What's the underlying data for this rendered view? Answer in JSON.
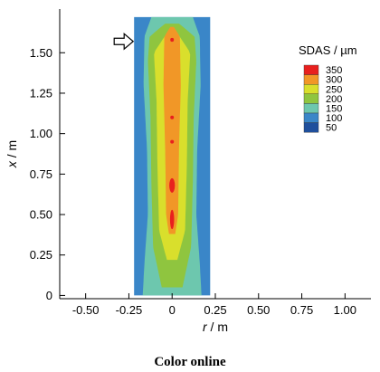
{
  "chart_data": {
    "type": "heatmap",
    "xlabel_var": "r",
    "xlabel_unit": " / m",
    "ylabel_var": "x",
    "ylabel_unit": " / m",
    "xlim": [
      -0.65,
      1.15
    ],
    "ylim": [
      -0.02,
      1.77
    ],
    "x_ticks": [
      -0.5,
      -0.25,
      0,
      0.25,
      0.5,
      0.75,
      1.0
    ],
    "x_tick_labels": [
      "-0.50",
      "-0.25",
      "0",
      "0.25",
      "0.50",
      "0.75",
      "1.00"
    ],
    "y_ticks": [
      0,
      0.25,
      0.5,
      0.75,
      1.0,
      1.25,
      1.5
    ],
    "y_tick_labels": [
      "0",
      "0.25",
      "0.50",
      "0.75",
      "1.00",
      "1.25",
      "1.50"
    ],
    "domain": {
      "r_min": -0.22,
      "r_max": 0.22,
      "x_min": 0,
      "x_max": 1.72
    },
    "legend": {
      "title": "SDAS / µm",
      "levels": [
        {
          "label": "350",
          "color": "#e8201e"
        },
        {
          "label": "300",
          "color": "#f19727"
        },
        {
          "label": "250",
          "color": "#d9df2c"
        },
        {
          "label": "200",
          "color": "#8fc53f"
        },
        {
          "label": "150",
          "color": "#6dc7ae"
        },
        {
          "label": "100",
          "color": "#3a86c8"
        },
        {
          "label": "50",
          "color": "#1f4f9c"
        }
      ]
    },
    "arrow_at_x": 1.57,
    "contours": [
      {
        "level": 100,
        "color": "#3a86c8",
        "half_width": [
          [
            0,
            0.22
          ],
          [
            1.72,
            0.22
          ]
        ]
      },
      {
        "level": 150,
        "color": "#6dc7ae",
        "half_width": [
          [
            0,
            0.17
          ],
          [
            0.2,
            0.16
          ],
          [
            0.5,
            0.14
          ],
          [
            0.9,
            0.145
          ],
          [
            1.3,
            0.165
          ],
          [
            1.6,
            0.16
          ],
          [
            1.72,
            0.12
          ]
        ]
      },
      {
        "level": 200,
        "color": "#8fc53f",
        "half_width": [
          [
            0.05,
            0.06
          ],
          [
            0.3,
            0.11
          ],
          [
            0.7,
            0.12
          ],
          [
            1.1,
            0.125
          ],
          [
            1.45,
            0.14
          ],
          [
            1.6,
            0.13
          ],
          [
            1.68,
            0.04
          ]
        ]
      },
      {
        "level": 250,
        "color": "#d9df2c",
        "half_width": [
          [
            0.22,
            0.03
          ],
          [
            0.4,
            0.075
          ],
          [
            0.8,
            0.085
          ],
          [
            1.2,
            0.09
          ],
          [
            1.5,
            0.105
          ],
          [
            1.63,
            0.025
          ]
        ]
      },
      {
        "level": 300,
        "color": "#f19727",
        "half_width": [
          [
            0.38,
            0.018
          ],
          [
            0.5,
            0.035
          ],
          [
            0.9,
            0.04
          ],
          [
            1.3,
            0.05
          ],
          [
            1.6,
            0.045
          ],
          [
            1.66,
            0.01
          ]
        ]
      }
    ],
    "hot_spots": [
      {
        "r": 0,
        "x": 0.47,
        "w": 0.012,
        "h": 0.06
      },
      {
        "r": 0,
        "x": 0.68,
        "w": 0.016,
        "h": 0.045
      },
      {
        "r": 0,
        "x": 0.95,
        "w": 0.006,
        "h": 0.01
      },
      {
        "r": 0,
        "x": 1.1,
        "w": 0.006,
        "h": 0.01
      },
      {
        "r": 0,
        "x": 1.58,
        "w": 0.006,
        "h": 0.012
      }
    ]
  },
  "caption": "Color online"
}
